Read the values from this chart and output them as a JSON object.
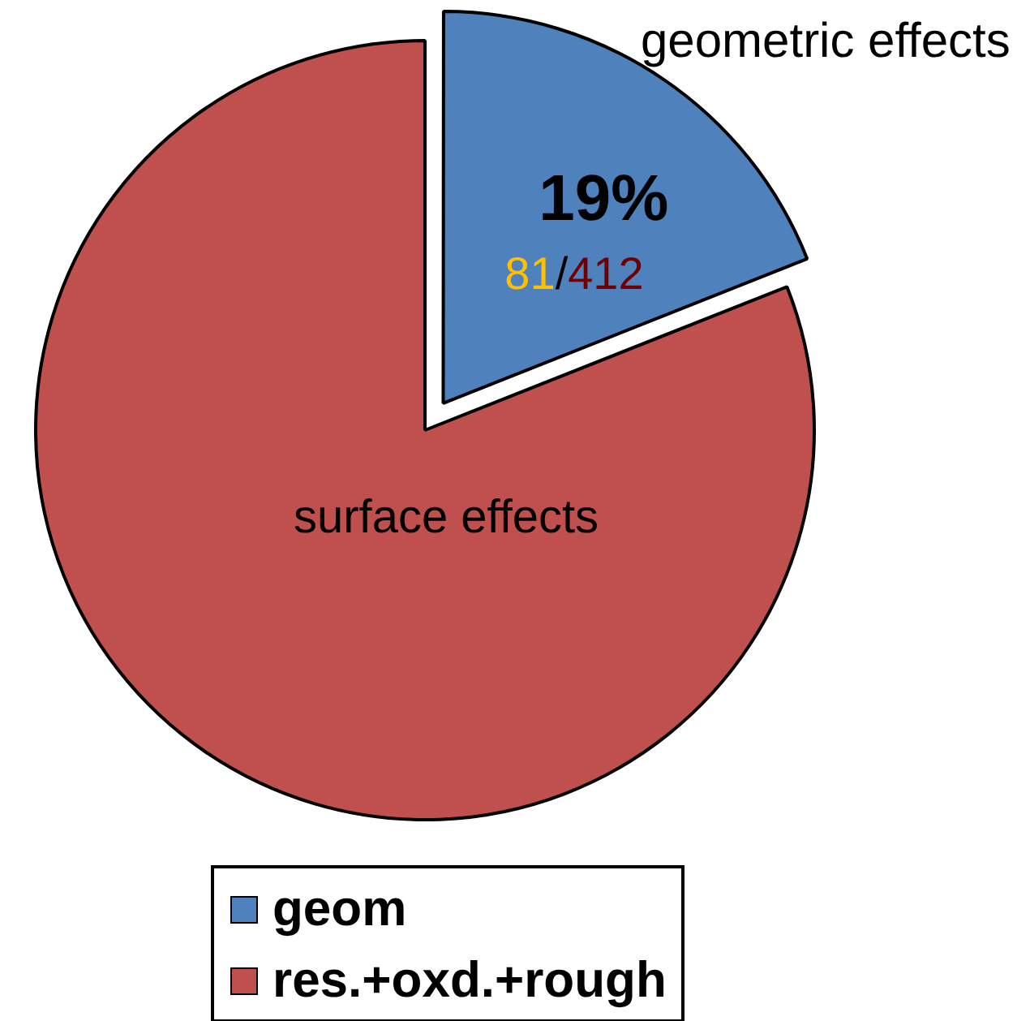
{
  "chart_data": {
    "type": "pie",
    "categories": [
      "geom",
      "res.+oxd.+rough"
    ],
    "values": [
      19,
      81
    ],
    "colors": [
      "#4f81bd",
      "#c0504d"
    ],
    "value_labels": [
      "19%",
      null
    ],
    "annotations": [
      "geometric effects",
      "surface effects",
      "81/412"
    ],
    "legend": "bottom"
  }
}
